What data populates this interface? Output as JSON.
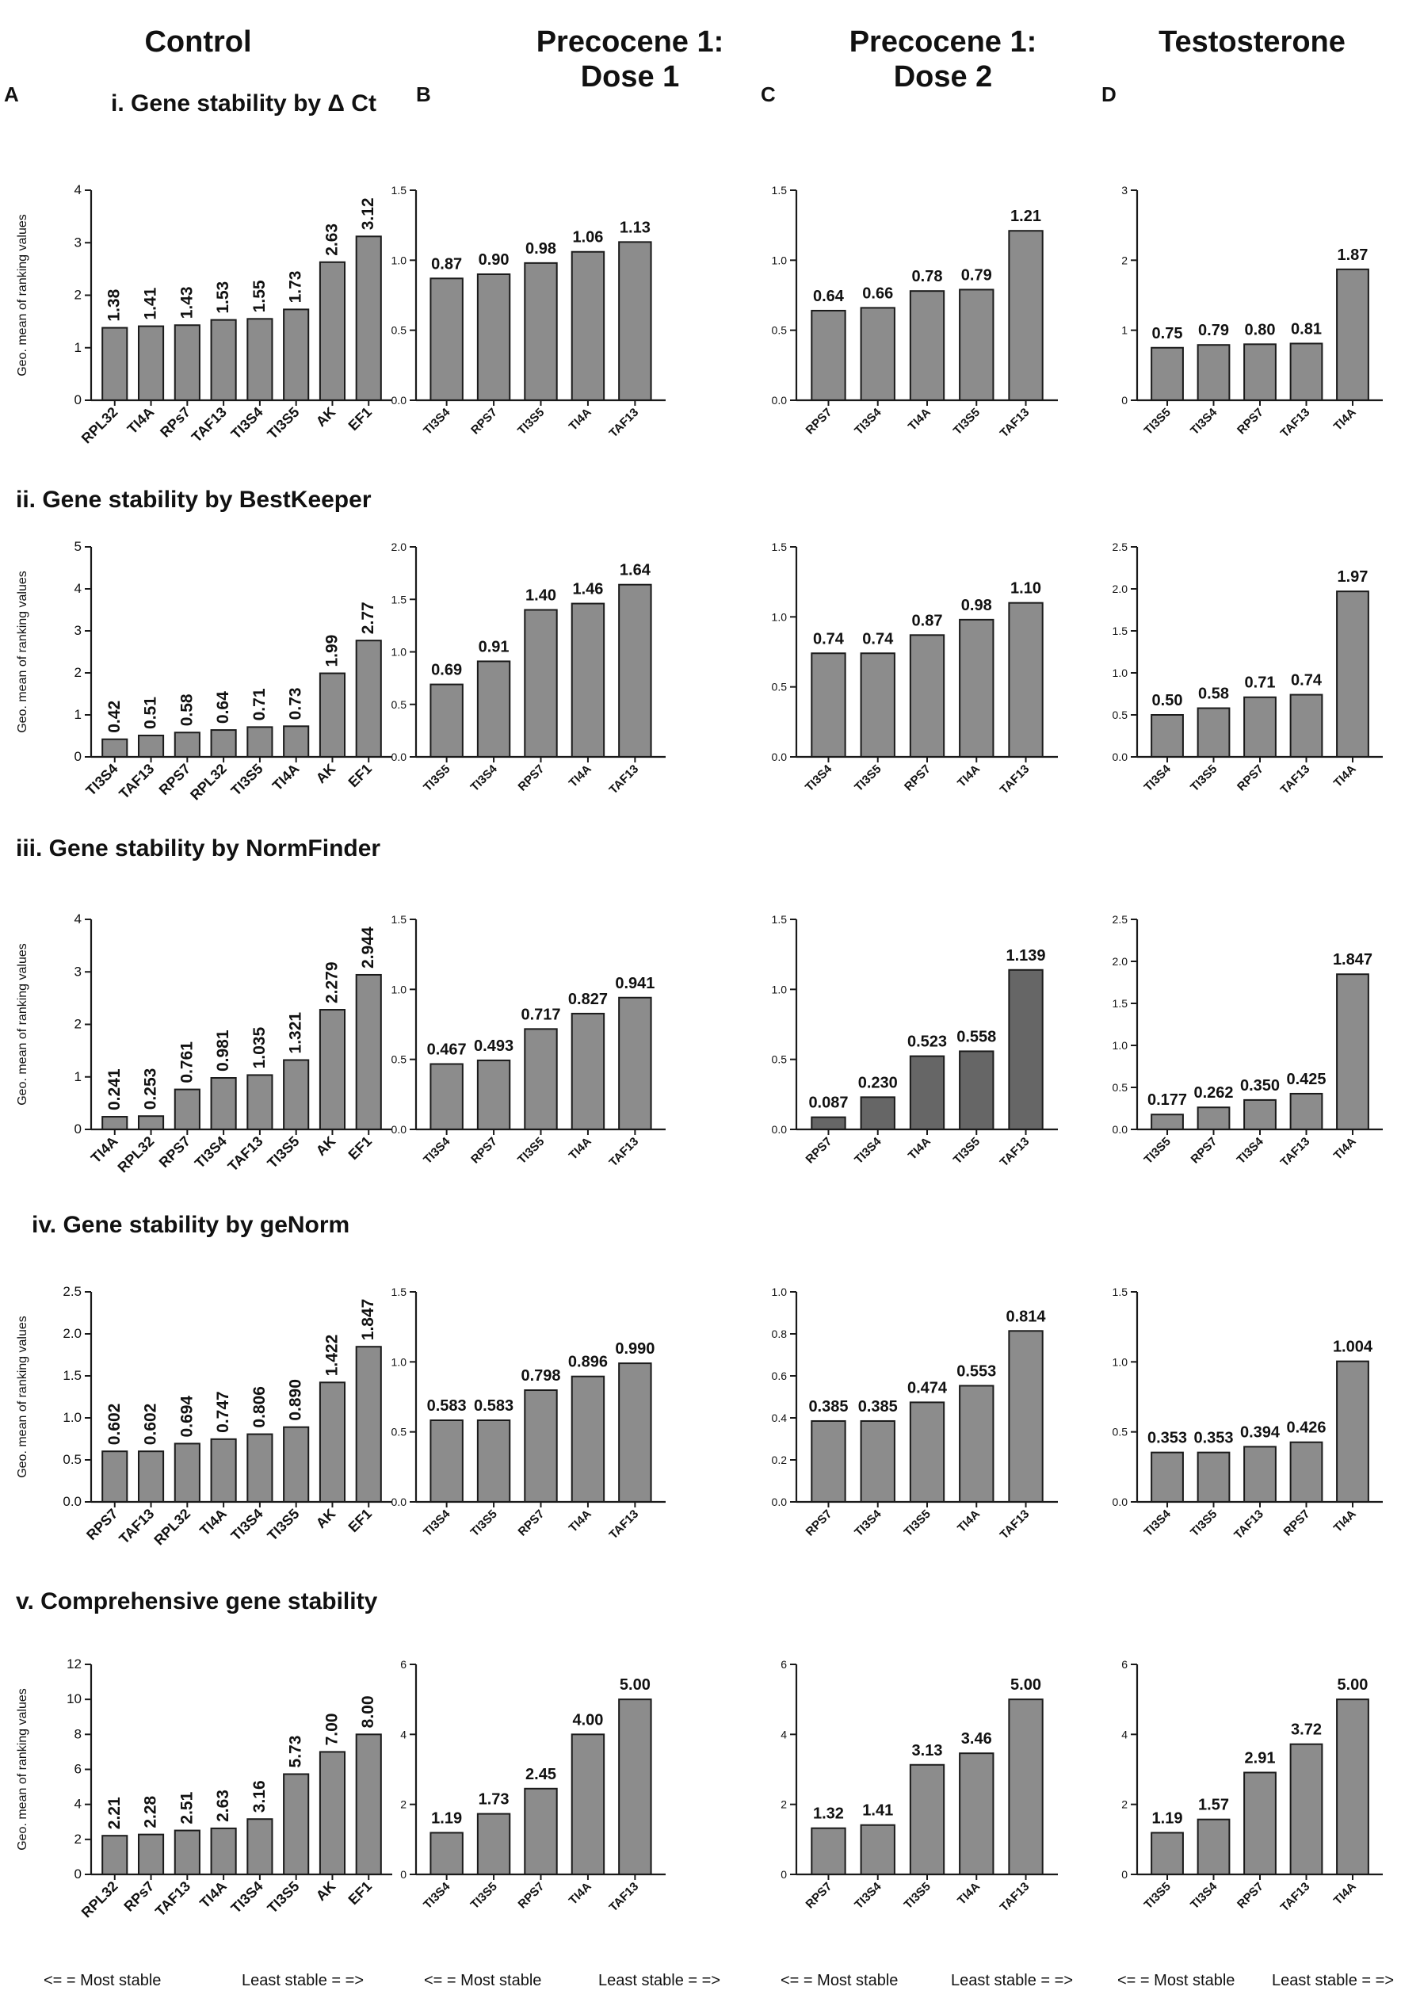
{
  "columns": [
    "Control",
    "Precocene 1:\nDose 1",
    "Precocene 1:\nDose 2",
    "Testosterone"
  ],
  "panel_letters": [
    "A",
    "B",
    "C",
    "D"
  ],
  "rows": [
    "i. Gene stability by Δ Ct",
    "ii. Gene stability by BestKeeper",
    "iii. Gene stability by NormFinder",
    "iv. Gene stability by geNorm",
    "v. Comprehensive gene stability"
  ],
  "ylabel": "Geo. mean of ranking values",
  "footer": {
    "most": "<= = Most stable",
    "least": "Least stable = =>"
  },
  "colors": {
    "bar": "#8c8c8c",
    "bar_dark": "#666666",
    "bar_stroke": "#1a1a1a",
    "axis": "#1a1a1a",
    "text": "#111111"
  },
  "chart_data": [
    {
      "type": "bar",
      "row": 0,
      "col": 0,
      "categories": [
        "RPL32",
        "TI4A",
        "RPs7",
        "TAF13",
        "TI3S4",
        "TI3S5",
        "AK",
        "EF1"
      ],
      "values": [
        1.38,
        1.41,
        1.43,
        1.53,
        1.55,
        1.73,
        2.63,
        3.12
      ],
      "labels": [
        "1.38",
        "1.41",
        "1.43",
        "1.53",
        "1.55",
        "1.73",
        "2.63",
        "3.12"
      ],
      "ylim": [
        0,
        4
      ],
      "yticks": [
        "0",
        "1",
        "2",
        "3",
        "4"
      ],
      "label_rot": true,
      "ylabel": "Geo. mean of ranking values"
    },
    {
      "type": "bar",
      "row": 0,
      "col": 1,
      "categories": [
        "TI3S4",
        "RPS7",
        "TI3S5",
        "TI4A",
        "TAF13"
      ],
      "values": [
        0.87,
        0.9,
        0.98,
        1.06,
        1.13
      ],
      "labels": [
        "0.87",
        "0.90",
        "0.98",
        "1.06",
        "1.13"
      ],
      "ylim": [
        0,
        1.5
      ],
      "yticks": [
        "0.0",
        "0.5",
        "1.0",
        "1.5"
      ],
      "label_rot": false
    },
    {
      "type": "bar",
      "row": 0,
      "col": 2,
      "categories": [
        "RPS7",
        "TI3S4",
        "TI4A",
        "TI3S5",
        "TAF13"
      ],
      "values": [
        0.64,
        0.66,
        0.78,
        0.79,
        1.21
      ],
      "labels": [
        "0.64",
        "0.66",
        "0.78",
        "0.79",
        "1.21"
      ],
      "ylim": [
        0,
        1.5
      ],
      "yticks": [
        "0.0",
        "0.5",
        "1.0",
        "1.5"
      ],
      "label_rot": false
    },
    {
      "type": "bar",
      "row": 0,
      "col": 3,
      "categories": [
        "TI3S5",
        "TI3S4",
        "RPS7",
        "TAF13",
        "TI4A"
      ],
      "values": [
        0.75,
        0.79,
        0.8,
        0.81,
        1.87
      ],
      "labels": [
        "0.75",
        "0.79",
        "0.80",
        "0.81",
        "1.87"
      ],
      "ylim": [
        0,
        3
      ],
      "yticks": [
        "0",
        "1",
        "2",
        "3"
      ],
      "label_rot": false
    },
    {
      "type": "bar",
      "row": 1,
      "col": 0,
      "categories": [
        "TI3S4",
        "TAF13",
        "RPS7",
        "RPL32",
        "TI3S5",
        "TI4A",
        "AK",
        "EF1"
      ],
      "values": [
        0.42,
        0.51,
        0.58,
        0.64,
        0.71,
        0.73,
        1.99,
        2.77
      ],
      "labels": [
        "0.42",
        "0.51",
        "0.58",
        "0.64",
        "0.71",
        "0.73",
        "1.99",
        "2.77"
      ],
      "ylim": [
        0,
        5
      ],
      "yticks": [
        "0",
        "1",
        "2",
        "3",
        "4",
        "5"
      ],
      "label_rot": true,
      "ylabel": "Geo. mean of ranking values"
    },
    {
      "type": "bar",
      "row": 1,
      "col": 1,
      "categories": [
        "TI3S5",
        "TI3S4",
        "RPS7",
        "TI4A",
        "TAF13"
      ],
      "values": [
        0.69,
        0.91,
        1.4,
        1.46,
        1.64
      ],
      "labels": [
        "0.69",
        "0.91",
        "1.40",
        "1.46",
        "1.64"
      ],
      "ylim": [
        0,
        2
      ],
      "yticks": [
        "0.0",
        "0.5",
        "1.0",
        "1.5",
        "2.0"
      ],
      "label_rot": false
    },
    {
      "type": "bar",
      "row": 1,
      "col": 2,
      "categories": [
        "TI3S4",
        "TI3S5",
        "RPS7",
        "TI4A",
        "TAF13"
      ],
      "values": [
        0.74,
        0.74,
        0.87,
        0.98,
        1.1
      ],
      "labels": [
        "0.74",
        "0.74",
        "0.87",
        "0.98",
        "1.10"
      ],
      "ylim": [
        0,
        1.5
      ],
      "yticks": [
        "0.0",
        "0.5",
        "1.0",
        "1.5"
      ],
      "label_rot": false
    },
    {
      "type": "bar",
      "row": 1,
      "col": 3,
      "categories": [
        "TI3S4",
        "TI3S5",
        "RPS7",
        "TAF13",
        "TI4A"
      ],
      "values": [
        0.5,
        0.58,
        0.71,
        0.74,
        1.97
      ],
      "labels": [
        "0.50",
        "0.58",
        "0.71",
        "0.74",
        "1.97"
      ],
      "ylim": [
        0,
        2.5
      ],
      "yticks": [
        "0.0",
        "0.5",
        "1.0",
        "1.5",
        "2.0",
        "2.5"
      ],
      "label_rot": false
    },
    {
      "type": "bar",
      "row": 2,
      "col": 0,
      "categories": [
        "TI4A",
        "RPL32",
        "RPS7",
        "TI3S4",
        "TAF13",
        "TI3S5",
        "AK",
        "EF1"
      ],
      "values": [
        0.241,
        0.253,
        0.761,
        0.981,
        1.035,
        1.321,
        2.279,
        2.944
      ],
      "labels": [
        "0.241",
        "0.253",
        "0.761",
        "0.981",
        "1.035",
        "1.321",
        "2.279",
        "2.944"
      ],
      "ylim": [
        0,
        4
      ],
      "yticks": [
        "0",
        "1",
        "2",
        "3",
        "4"
      ],
      "label_rot": true,
      "ylabel": "Geo. mean of ranking values"
    },
    {
      "type": "bar",
      "row": 2,
      "col": 1,
      "categories": [
        "TI3S4",
        "RPS7",
        "TI3S5",
        "TI4A",
        "TAF13"
      ],
      "values": [
        0.467,
        0.493,
        0.717,
        0.827,
        0.941
      ],
      "labels": [
        "0.467",
        "0.493",
        "0.717",
        "0.827",
        "0.941"
      ],
      "ylim": [
        0,
        1.5
      ],
      "yticks": [
        "0.0",
        "0.5",
        "1.0",
        "1.5"
      ],
      "label_rot": false
    },
    {
      "type": "bar",
      "row": 2,
      "col": 2,
      "categories": [
        "RPS7",
        "TI3S4",
        "TI4A",
        "TI3S5",
        "TAF13"
      ],
      "values": [
        0.087,
        0.23,
        0.523,
        0.558,
        1.139
      ],
      "labels": [
        "0.087",
        "0.230",
        "0.523",
        "0.558",
        "1.139"
      ],
      "ylim": [
        0,
        1.5
      ],
      "yticks": [
        "0.0",
        "0.5",
        "1.0",
        "1.5"
      ],
      "label_rot": false,
      "dark": true
    },
    {
      "type": "bar",
      "row": 2,
      "col": 3,
      "categories": [
        "TI3S5",
        "RPS7",
        "TI3S4",
        "TAF13",
        "TI4A"
      ],
      "values": [
        0.177,
        0.262,
        0.35,
        0.425,
        1.847
      ],
      "labels": [
        "0.177",
        "0.262",
        "0.350",
        "0.425",
        "1.847"
      ],
      "ylim": [
        0,
        2.5
      ],
      "yticks": [
        "0.0",
        "0.5",
        "1.0",
        "1.5",
        "2.0",
        "2.5"
      ],
      "label_rot": false
    },
    {
      "type": "bar",
      "row": 3,
      "col": 0,
      "categories": [
        "RPS7",
        "TAF13",
        "RPL32",
        "TI4A",
        "TI3S4",
        "TI3S5",
        "AK",
        "EF1"
      ],
      "values": [
        0.602,
        0.602,
        0.694,
        0.747,
        0.806,
        0.89,
        1.422,
        1.847
      ],
      "labels": [
        "0.602",
        "0.602",
        "0.694",
        "0.747",
        "0.806",
        "0.890",
        "1.422",
        "1.847"
      ],
      "ylim": [
        0,
        2.5
      ],
      "yticks": [
        "0.0",
        "0.5",
        "1.0",
        "1.5",
        "2.0",
        "2.5"
      ],
      "label_rot": true,
      "ylabel": "Geo. mean of ranking values"
    },
    {
      "type": "bar",
      "row": 3,
      "col": 1,
      "categories": [
        "TI3S4",
        "TI3S5",
        "RPS7",
        "TI4A",
        "TAF13"
      ],
      "values": [
        0.583,
        0.583,
        0.798,
        0.896,
        0.99
      ],
      "labels": [
        "0.583",
        "0.583",
        "0.798",
        "0.896",
        "0.990"
      ],
      "ylim": [
        0,
        1.5
      ],
      "yticks": [
        "0.0",
        "0.5",
        "1.0",
        "1.5"
      ],
      "label_rot": false
    },
    {
      "type": "bar",
      "row": 3,
      "col": 2,
      "categories": [
        "RPS7",
        "TI3S4",
        "TI3S5",
        "TI4A",
        "TAF13"
      ],
      "values": [
        0.385,
        0.385,
        0.474,
        0.553,
        0.814
      ],
      "labels": [
        "0.385",
        "0.385",
        "0.474",
        "0.553",
        "0.814"
      ],
      "ylim": [
        0,
        1.0
      ],
      "yticks": [
        "0.0",
        "0.2",
        "0.4",
        "0.6",
        "0.8",
        "1.0"
      ],
      "label_rot": false
    },
    {
      "type": "bar",
      "row": 3,
      "col": 3,
      "categories": [
        "TI3S4",
        "TI3S5",
        "TAF13",
        "RPS7",
        "TI4A"
      ],
      "values": [
        0.353,
        0.353,
        0.394,
        0.426,
        1.004
      ],
      "labels": [
        "0.353",
        "0.353",
        "0.394",
        "0.426",
        "1.004"
      ],
      "ylim": [
        0,
        1.5
      ],
      "yticks": [
        "0.0",
        "0.5",
        "1.0",
        "1.5"
      ],
      "label_rot": false
    },
    {
      "type": "bar",
      "row": 4,
      "col": 0,
      "categories": [
        "RPL32",
        "RPs7",
        "TAF13",
        "TI4A",
        "TI3S4",
        "TI3S5",
        "AK",
        "EF1"
      ],
      "values": [
        2.21,
        2.28,
        2.51,
        2.63,
        3.16,
        5.73,
        7.0,
        8.0
      ],
      "labels": [
        "2.21",
        "2.28",
        "2.51",
        "2.63",
        "3.16",
        "5.73",
        "7.00",
        "8.00"
      ],
      "ylim": [
        0,
        12
      ],
      "yticks": [
        "0",
        "2",
        "4",
        "6",
        "8",
        "10",
        "12"
      ],
      "label_rot": true,
      "ylabel": "Geo. mean of ranking values"
    },
    {
      "type": "bar",
      "row": 4,
      "col": 1,
      "categories": [
        "TI3S4",
        "TI3S5",
        "RPS7",
        "TI4A",
        "TAF13"
      ],
      "values": [
        1.19,
        1.73,
        2.45,
        4.0,
        5.0
      ],
      "labels": [
        "1.19",
        "1.73",
        "2.45",
        "4.00",
        "5.00"
      ],
      "ylim": [
        0,
        6
      ],
      "yticks": [
        "0",
        "2",
        "4",
        "6"
      ],
      "label_rot": false
    },
    {
      "type": "bar",
      "row": 4,
      "col": 2,
      "categories": [
        "RPS7",
        "TI3S4",
        "TI3S5",
        "TI4A",
        "TAF13"
      ],
      "values": [
        1.32,
        1.41,
        3.13,
        3.46,
        5.0
      ],
      "labels": [
        "1.32",
        "1.41",
        "3.13",
        "3.46",
        "5.00"
      ],
      "ylim": [
        0,
        6
      ],
      "yticks": [
        "0",
        "2",
        "4",
        "6"
      ],
      "label_rot": false
    },
    {
      "type": "bar",
      "row": 4,
      "col": 3,
      "categories": [
        "TI3S5",
        "TI3S4",
        "RPS7",
        "TAF13",
        "TI4A"
      ],
      "values": [
        1.19,
        1.57,
        2.91,
        3.72,
        5.0
      ],
      "labels": [
        "1.19",
        "1.57",
        "2.91",
        "3.72",
        "5.00"
      ],
      "ylim": [
        0,
        6
      ],
      "yticks": [
        "0",
        "2",
        "4",
        "6"
      ],
      "label_rot": false
    }
  ]
}
